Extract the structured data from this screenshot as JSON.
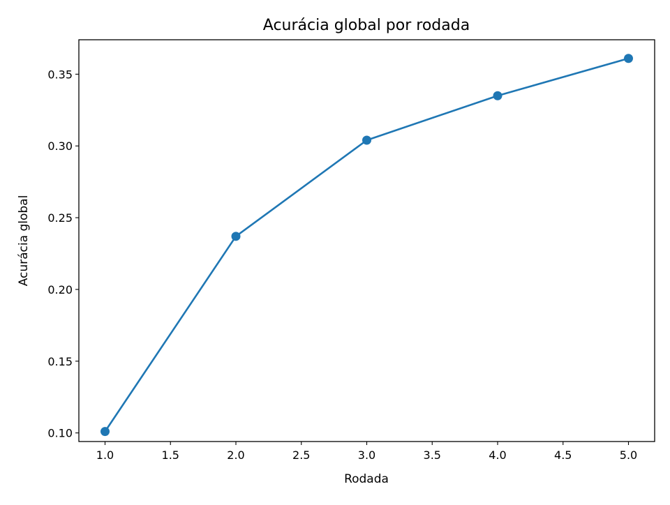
{
  "chart_data": {
    "type": "line",
    "title": "Acurácia global por rodada",
    "xlabel": "Rodada",
    "ylabel": "Acurácia global",
    "xlim": [
      0.8,
      5.2
    ],
    "ylim": [
      0.094,
      0.374
    ],
    "xticks": [
      1.0,
      1.5,
      2.0,
      2.5,
      3.0,
      3.5,
      4.0,
      4.5,
      5.0
    ],
    "xtick_labels": [
      "1.0",
      "1.5",
      "2.0",
      "2.5",
      "3.0",
      "3.5",
      "4.0",
      "4.5",
      "5.0"
    ],
    "yticks": [
      0.1,
      0.15,
      0.2,
      0.25,
      0.3,
      0.35
    ],
    "ytick_labels": [
      "0.10",
      "0.15",
      "0.20",
      "0.25",
      "0.30",
      "0.35"
    ],
    "grid": false,
    "series": [
      {
        "color": "#1f77b4",
        "marker": "circle",
        "x": [
          1.0,
          2.0,
          3.0,
          4.0,
          5.0
        ],
        "y": [
          0.101,
          0.237,
          0.304,
          0.335,
          0.361
        ]
      }
    ]
  }
}
